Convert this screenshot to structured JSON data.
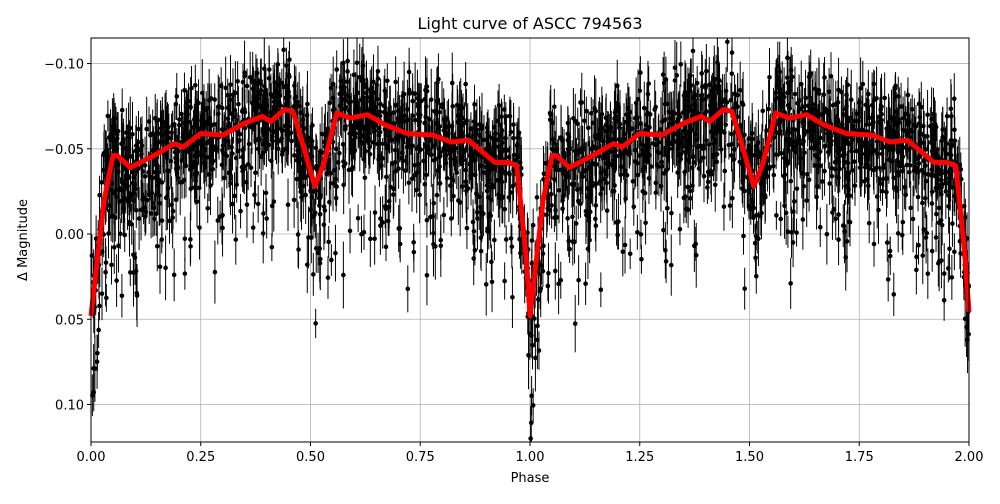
{
  "chart_data": {
    "type": "scatter",
    "title": "Light curve of ASCC 794563",
    "xlabel": "Phase",
    "ylabel": "Δ Magnitude",
    "xlim": [
      0.0,
      2.0
    ],
    "ylim": [
      0.122,
      -0.115
    ],
    "y_inverted": true,
    "grid": true,
    "xticks": [
      "0.00",
      "0.25",
      "0.50",
      "0.75",
      "1.00",
      "1.25",
      "1.50",
      "1.75",
      "2.00"
    ],
    "xtick_values": [
      0,
      0.25,
      0.5,
      0.75,
      1.0,
      1.25,
      1.5,
      1.75,
      2.0
    ],
    "yticks": [
      "−0.10",
      "−0.05",
      "0.00",
      "0.05",
      "0.10"
    ],
    "ytick_values": [
      -0.1,
      -0.05,
      0.0,
      0.05,
      0.1
    ],
    "series": [
      {
        "kind": "errorbar-points",
        "color": "#000000",
        "description_of_spread": "dense observations with error bars, scatter from about -0.11 to 0.12 mag"
      },
      {
        "kind": "line",
        "color": "#ff0000",
        "x": [
          0.0,
          0.03,
          0.05,
          0.06,
          0.09,
          0.12,
          0.15,
          0.19,
          0.21,
          0.25,
          0.3,
          0.35,
          0.39,
          0.41,
          0.44,
          0.46,
          0.48,
          0.51,
          0.53,
          0.56,
          0.59,
          0.63,
          0.67,
          0.72,
          0.78,
          0.82,
          0.86,
          0.92,
          0.95,
          0.97,
          0.99,
          1.0
        ],
        "y": [
          0.048,
          -0.02,
          -0.046,
          -0.046,
          -0.039,
          -0.043,
          -0.047,
          -0.053,
          -0.051,
          -0.059,
          -0.058,
          -0.065,
          -0.069,
          -0.066,
          -0.073,
          -0.072,
          -0.055,
          -0.028,
          -0.041,
          -0.071,
          -0.068,
          -0.07,
          -0.064,
          -0.059,
          -0.058,
          -0.054,
          -0.055,
          -0.042,
          -0.042,
          -0.04,
          0.01,
          0.046
        ],
        "period": 1.0
      }
    ]
  }
}
